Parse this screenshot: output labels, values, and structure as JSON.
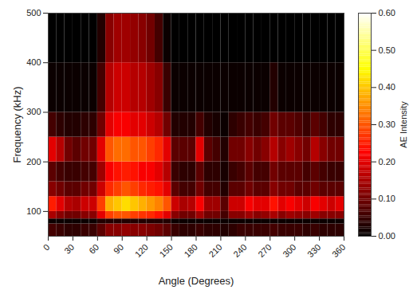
{
  "chart_data": {
    "type": "heatmap",
    "x_label": "Angle (Degrees)",
    "y_label": "Frequency (kHz)",
    "xlim": [
      0,
      360
    ],
    "xticks": [
      0,
      30,
      60,
      90,
      120,
      150,
      180,
      210,
      240,
      270,
      300,
      330,
      360
    ],
    "ylim": [
      50,
      500
    ],
    "yticks": [
      100,
      200,
      300,
      400,
      500
    ],
    "x_edges": [
      0,
      10,
      20,
      30,
      40,
      50,
      60,
      70,
      80,
      90,
      100,
      110,
      120,
      130,
      140,
      150,
      160,
      170,
      180,
      190,
      200,
      210,
      220,
      230,
      240,
      250,
      260,
      270,
      280,
      290,
      300,
      310,
      320,
      330,
      340,
      350,
      360
    ],
    "y_edges": [
      50,
      75,
      85,
      100,
      130,
      160,
      200,
      250,
      300,
      400,
      500
    ],
    "cells": [
      [
        0.06,
        0.05,
        0.04,
        0.04,
        0.05,
        0.05,
        0.08,
        0.12,
        0.12,
        0.13,
        0.12,
        0.12,
        0.11,
        0.1,
        0.08,
        0.05,
        0.04,
        0.04,
        0.05,
        0.04,
        0.04,
        0.03,
        0.04,
        0.05,
        0.05,
        0.05,
        0.05,
        0.06,
        0.05,
        0.05,
        0.05,
        0.04,
        0.05,
        0.04,
        0.04,
        0.04
      ],
      [
        0.01,
        0.01,
        0.01,
        0.01,
        0.01,
        0.01,
        0.03,
        0.03,
        0.03,
        0.03,
        0.03,
        0.03,
        0.03,
        0.03,
        0.03,
        0.01,
        0.01,
        0.01,
        0.01,
        0.01,
        0.01,
        0.01,
        0.01,
        0.01,
        0.01,
        0.01,
        0.01,
        0.01,
        0.01,
        0.01,
        0.01,
        0.01,
        0.01,
        0.01,
        0.01,
        0.01
      ],
      [
        0.15,
        0.12,
        0.1,
        0.1,
        0.12,
        0.12,
        0.2,
        0.28,
        0.3,
        0.3,
        0.28,
        0.27,
        0.26,
        0.24,
        0.2,
        0.12,
        0.1,
        0.1,
        0.14,
        0.1,
        0.1,
        0.06,
        0.12,
        0.12,
        0.14,
        0.12,
        0.13,
        0.15,
        0.12,
        0.14,
        0.13,
        0.12,
        0.14,
        0.12,
        0.12,
        0.12
      ],
      [
        0.25,
        0.2,
        0.16,
        0.15,
        0.18,
        0.18,
        0.28,
        0.38,
        0.4,
        0.42,
        0.4,
        0.38,
        0.36,
        0.34,
        0.3,
        0.18,
        0.15,
        0.16,
        0.22,
        0.14,
        0.14,
        0.08,
        0.18,
        0.18,
        0.22,
        0.2,
        0.2,
        0.24,
        0.2,
        0.22,
        0.2,
        0.18,
        0.22,
        0.2,
        0.18,
        0.2
      ],
      [
        0.12,
        0.1,
        0.08,
        0.08,
        0.1,
        0.1,
        0.18,
        0.26,
        0.28,
        0.3,
        0.28,
        0.26,
        0.25,
        0.24,
        0.2,
        0.08,
        0.06,
        0.06,
        0.1,
        0.06,
        0.06,
        0.03,
        0.08,
        0.08,
        0.1,
        0.08,
        0.08,
        0.12,
        0.1,
        0.1,
        0.08,
        0.08,
        0.1,
        0.08,
        0.08,
        0.08
      ],
      [
        0.08,
        0.06,
        0.05,
        0.05,
        0.06,
        0.06,
        0.14,
        0.22,
        0.24,
        0.25,
        0.24,
        0.22,
        0.22,
        0.2,
        0.16,
        0.05,
        0.04,
        0.04,
        0.08,
        0.04,
        0.04,
        0.02,
        0.05,
        0.06,
        0.08,
        0.06,
        0.06,
        0.1,
        0.08,
        0.08,
        0.08,
        0.06,
        0.08,
        0.06,
        0.05,
        0.05
      ],
      [
        0.2,
        0.16,
        0.1,
        0.08,
        0.1,
        0.1,
        0.2,
        0.3,
        0.32,
        0.32,
        0.3,
        0.3,
        0.28,
        0.26,
        0.2,
        0.08,
        0.08,
        0.08,
        0.2,
        0.08,
        0.06,
        0.03,
        0.1,
        0.1,
        0.12,
        0.1,
        0.12,
        0.16,
        0.12,
        0.14,
        0.12,
        0.1,
        0.16,
        0.12,
        0.1,
        0.1
      ],
      [
        0.06,
        0.04,
        0.03,
        0.03,
        0.04,
        0.04,
        0.1,
        0.2,
        0.22,
        0.22,
        0.2,
        0.2,
        0.18,
        0.16,
        0.1,
        0.03,
        0.03,
        0.03,
        0.06,
        0.03,
        0.02,
        0.01,
        0.04,
        0.05,
        0.06,
        0.05,
        0.06,
        0.1,
        0.08,
        0.08,
        0.07,
        0.05,
        0.08,
        0.06,
        0.04,
        0.04
      ],
      [
        0.01,
        0.01,
        0.01,
        0.01,
        0.01,
        0.01,
        0.06,
        0.16,
        0.18,
        0.18,
        0.16,
        0.16,
        0.14,
        0.12,
        0.05,
        0.01,
        0.01,
        0.01,
        0.01,
        0.01,
        0.01,
        0.01,
        0.01,
        0.01,
        0.01,
        0.01,
        0.01,
        0.03,
        0.01,
        0.01,
        0.01,
        0.01,
        0.01,
        0.01,
        0.01,
        0.01
      ],
      [
        0,
        0,
        0,
        0,
        0,
        0,
        0.03,
        0.12,
        0.14,
        0.14,
        0.13,
        0.12,
        0.1,
        0.06,
        0.01,
        0,
        0,
        0,
        0,
        0,
        0,
        0,
        0,
        0,
        0,
        0,
        0,
        0,
        0,
        0,
        0,
        0,
        0,
        0,
        0,
        0
      ]
    ],
    "colorbar": {
      "label": "AE Intensity",
      "range": [
        0,
        0.6
      ],
      "ticks": [
        0,
        0.1,
        0.2,
        0.3,
        0.4,
        0.5,
        0.6
      ]
    }
  }
}
